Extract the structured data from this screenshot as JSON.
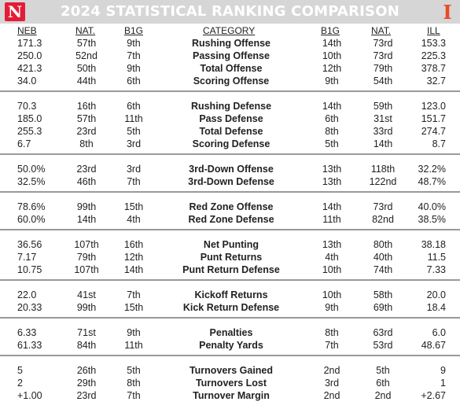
{
  "title": "2024 STATISTICAL RANKING COMPARISON",
  "logos": {
    "left_icon": "nebraska-n-logo",
    "left_text": "N",
    "right_icon": "illinois-i-logo",
    "right_text": "I"
  },
  "columns": {
    "neb": "NEB",
    "neb_nat": "NAT.",
    "neb_b1g": "B1G",
    "category": "CATEGORY",
    "ill_b1g": "B1G",
    "ill_nat": "NAT.",
    "ill": "ILL"
  },
  "groups": [
    {
      "rows": [
        {
          "neb": "171.3",
          "neb_nat": "57th",
          "neb_b1g": "9th",
          "category": "Rushing Offense",
          "ill_b1g": "14th",
          "ill_nat": "73rd",
          "ill": "153.3"
        },
        {
          "neb": "250.0",
          "neb_nat": "52nd",
          "neb_b1g": "7th",
          "category": "Passing Offense",
          "ill_b1g": "10th",
          "ill_nat": "73rd",
          "ill": "225.3"
        },
        {
          "neb": "421.3",
          "neb_nat": "50th",
          "neb_b1g": "9th",
          "category": "Total Offense",
          "ill_b1g": "12th",
          "ill_nat": "79th",
          "ill": "378.7"
        },
        {
          "neb": "34.0",
          "neb_nat": "44th",
          "neb_b1g": "6th",
          "category": "Scoring Offense",
          "ill_b1g": "9th",
          "ill_nat": "54th",
          "ill": "32.7"
        }
      ]
    },
    {
      "rows": [
        {
          "neb": "70.3",
          "neb_nat": "16th",
          "neb_b1g": "6th",
          "category": "Rushing Defense",
          "ill_b1g": "14th",
          "ill_nat": "59th",
          "ill": "123.0"
        },
        {
          "neb": "185.0",
          "neb_nat": "57th",
          "neb_b1g": "11th",
          "category": "Pass Defense",
          "ill_b1g": "6th",
          "ill_nat": "31st",
          "ill": "151.7"
        },
        {
          "neb": "255.3",
          "neb_nat": "23rd",
          "neb_b1g": "5th",
          "category": "Total Defense",
          "ill_b1g": "8th",
          "ill_nat": "33rd",
          "ill": "274.7"
        },
        {
          "neb": "6.7",
          "neb_nat": "8th",
          "neb_b1g": "3rd",
          "category": "Scoring Defense",
          "ill_b1g": "5th",
          "ill_nat": "14th",
          "ill": "8.7"
        }
      ]
    },
    {
      "rows": [
        {
          "neb": "50.0%",
          "neb_nat": "23rd",
          "neb_b1g": "3rd",
          "category": "3rd-Down Offense",
          "ill_b1g": "13th",
          "ill_nat": "118th",
          "ill": "32.2%"
        },
        {
          "neb": "32.5%",
          "neb_nat": "46th",
          "neb_b1g": "7th",
          "category": "3rd-Down Defense",
          "ill_b1g": "13th",
          "ill_nat": "122nd",
          "ill": "48.7%"
        }
      ]
    },
    {
      "rows": [
        {
          "neb": "78.6%",
          "neb_nat": "99th",
          "neb_b1g": "15th",
          "category": "Red Zone Offense",
          "ill_b1g": "14th",
          "ill_nat": "73rd",
          "ill": "40.0%"
        },
        {
          "neb": "60.0%",
          "neb_nat": "14th",
          "neb_b1g": "4th",
          "category": "Red Zone Defense",
          "ill_b1g": "11th",
          "ill_nat": "82nd",
          "ill": "38.5%"
        }
      ]
    },
    {
      "rows": [
        {
          "neb": "36.56",
          "neb_nat": "107th",
          "neb_b1g": "16th",
          "category": "Net Punting",
          "ill_b1g": "13th",
          "ill_nat": "80th",
          "ill": "38.18"
        },
        {
          "neb": "7.17",
          "neb_nat": "79th",
          "neb_b1g": "12th",
          "category": "Punt Returns",
          "ill_b1g": "4th",
          "ill_nat": "40th",
          "ill": "11.5"
        },
        {
          "neb": "10.75",
          "neb_nat": "107th",
          "neb_b1g": "14th",
          "category": "Punt Return Defense",
          "ill_b1g": "10th",
          "ill_nat": "74th",
          "ill": "7.33"
        }
      ]
    },
    {
      "rows": [
        {
          "neb": "22.0",
          "neb_nat": "41st",
          "neb_b1g": "7th",
          "category": "Kickoff Returns",
          "ill_b1g": "10th",
          "ill_nat": "58th",
          "ill": "20.0"
        },
        {
          "neb": "20.33",
          "neb_nat": "99th",
          "neb_b1g": "15th",
          "category": "Kick Return Defense",
          "ill_b1g": "9th",
          "ill_nat": "69th",
          "ill": "18.4"
        }
      ]
    },
    {
      "rows": [
        {
          "neb": "6.33",
          "neb_nat": "71st",
          "neb_b1g": "9th",
          "category": "Penalties",
          "ill_b1g": "8th",
          "ill_nat": "63rd",
          "ill": "6.0"
        },
        {
          "neb": "61.33",
          "neb_nat": "84th",
          "neb_b1g": "11th",
          "category": "Penalty Yards",
          "ill_b1g": "7th",
          "ill_nat": "53rd",
          "ill": "48.67"
        }
      ]
    },
    {
      "rows": [
        {
          "neb": "5",
          "neb_nat": "26th",
          "neb_b1g": "5th",
          "category": "Turnovers Gained",
          "ill_b1g": "2nd",
          "ill_nat": "5th",
          "ill": "9"
        },
        {
          "neb": "2",
          "neb_nat": "29th",
          "neb_b1g": "8th",
          "category": "Turnovers Lost",
          "ill_b1g": "3rd",
          "ill_nat": "6th",
          "ill": "1"
        },
        {
          "neb": "+1.00",
          "neb_nat": "23rd",
          "neb_b1g": "7th",
          "category": "Turnover Margin",
          "ill_b1g": "2nd",
          "ill_nat": "2nd",
          "ill": "+2.67"
        }
      ]
    }
  ]
}
